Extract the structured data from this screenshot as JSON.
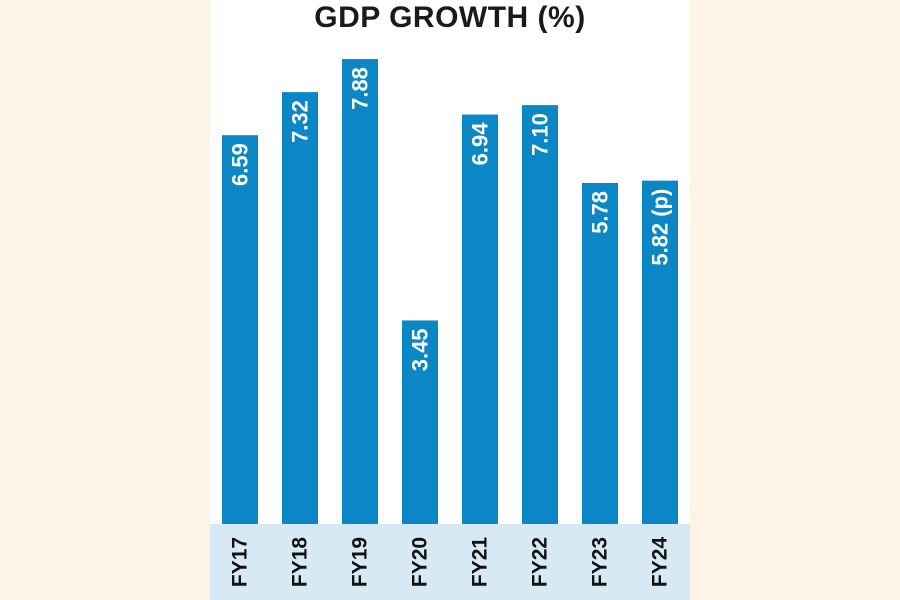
{
  "colors": {
    "bar": "#0a87c4",
    "page_background": "#fdf3e6",
    "panel_background": "#ffffff",
    "category_band": "#d6e9f5"
  },
  "chart_data": {
    "type": "bar",
    "title": "GDP GROWTH (%)",
    "xlabel": "",
    "ylabel": "",
    "categories": [
      "FY17",
      "FY18",
      "FY19",
      "FY20",
      "FY21",
      "FY22",
      "FY23",
      "FY24"
    ],
    "values": [
      6.59,
      7.32,
      7.88,
      3.45,
      6.94,
      7.1,
      5.78,
      5.82
    ],
    "data_labels": [
      "6.59",
      "7.32",
      "7.88",
      "3.45",
      "6.94",
      "7.10",
      "5.78",
      "5.82 (p)"
    ],
    "ylim": [
      0,
      8
    ],
    "grid": false,
    "legend": "none"
  }
}
